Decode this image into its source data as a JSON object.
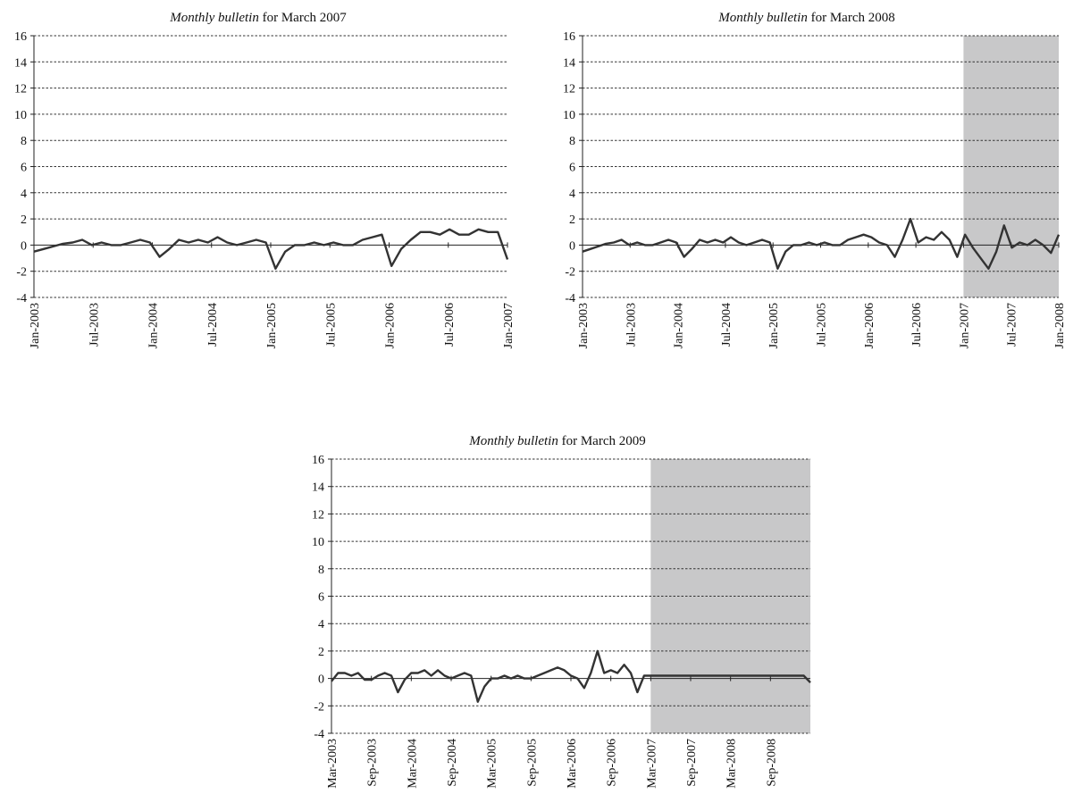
{
  "chart_data": [
    {
      "type": "line",
      "title_prefix": "Monthly bulletin",
      "title_suffix": " for March 2007",
      "ylim": [
        -4,
        16
      ],
      "yticks": [
        -4,
        -2,
        0,
        2,
        4,
        6,
        8,
        10,
        12,
        14,
        16
      ],
      "grid": true,
      "x_tick_labels": [
        "Jan-2003",
        "Jul-2003",
        "Jan-2004",
        "Jul-2004",
        "Jan-2005",
        "Jul-2005",
        "Jan-2006",
        "Jul-2006",
        "Jan-2007"
      ],
      "shaded": null,
      "series": [
        {
          "x_start": "Jan-2003",
          "values": [
            -0.5,
            -0.3,
            -0.1,
            0.1,
            0.2,
            0.4,
            0.0,
            0.2,
            0.0,
            0.0,
            0.2,
            0.4,
            0.2,
            -0.9,
            -0.3,
            0.4,
            0.2,
            0.4,
            0.2,
            0.6,
            0.2,
            0.0,
            0.2,
            0.4,
            0.2,
            -1.8,
            -0.5,
            0.0,
            0.0,
            0.2,
            0.0,
            0.2,
            0.0,
            0.0,
            0.4,
            0.6,
            0.8,
            -1.6,
            -0.3,
            0.4,
            1.0,
            1.0,
            0.8,
            1.2,
            0.8,
            0.8,
            1.2,
            1.0,
            1.0,
            -1.1
          ]
        }
      ]
    },
    {
      "type": "line",
      "title_prefix": "Monthly bulletin",
      "title_suffix": " for March 2008",
      "ylim": [
        -4,
        16
      ],
      "yticks": [
        -4,
        -2,
        0,
        2,
        4,
        6,
        8,
        10,
        12,
        14,
        16
      ],
      "grid": true,
      "x_tick_labels": [
        "Jan-2003",
        "Jul-2003",
        "Jan-2004",
        "Jul-2004",
        "Jan-2005",
        "Jul-2005",
        "Jan-2006",
        "Jul-2006",
        "Jan-2007",
        "Jul-2007",
        "Jan-2008"
      ],
      "shaded": [
        "Jan-2007",
        "Jan-2008"
      ],
      "series": [
        {
          "x_start": "Jan-2003",
          "values": [
            -0.5,
            -0.3,
            -0.1,
            0.1,
            0.2,
            0.4,
            0.0,
            0.2,
            0.0,
            0.0,
            0.2,
            0.4,
            0.2,
            -0.9,
            -0.3,
            0.4,
            0.2,
            0.4,
            0.2,
            0.6,
            0.2,
            0.0,
            0.2,
            0.4,
            0.2,
            -1.8,
            -0.5,
            0.0,
            0.0,
            0.2,
            0.0,
            0.2,
            0.0,
            0.0,
            0.4,
            0.6,
            0.8,
            0.6,
            0.2,
            0.0,
            -0.9,
            0.4,
            2.0,
            0.2,
            0.6,
            0.4,
            1.0,
            0.4,
            -0.9,
            0.8,
            -0.2,
            -1.0,
            -1.8,
            -0.5,
            1.5,
            -0.2,
            0.2,
            0.0,
            0.4,
            0.0,
            -0.6,
            0.8
          ]
        }
      ]
    },
    {
      "type": "line",
      "title_prefix": "Monthly bulletin",
      "title_suffix": " for March 2009",
      "ylim": [
        -4,
        16
      ],
      "yticks": [
        -4,
        -2,
        0,
        2,
        4,
        6,
        8,
        10,
        12,
        14,
        16
      ],
      "grid": true,
      "x_tick_labels": [
        "Mar-2003",
        "Sep-2003",
        "Mar-2004",
        "Sep-2004",
        "Mar-2005",
        "Sep-2005",
        "Mar-2006",
        "Sep-2006",
        "Mar-2007",
        "Sep-2007",
        "Mar-2008",
        "Sep-2008"
      ],
      "shaded": [
        "Mar-2007",
        "Mar-2009"
      ],
      "series": [
        {
          "x_start": "Mar-2003",
          "values": [
            -0.2,
            0.4,
            0.4,
            0.2,
            0.4,
            -0.1,
            -0.1,
            0.2,
            0.4,
            0.2,
            -1.0,
            -0.1,
            0.4,
            0.4,
            0.6,
            0.2,
            0.6,
            0.2,
            0.0,
            0.2,
            0.4,
            0.2,
            -1.7,
            -0.6,
            0.0,
            0.0,
            0.2,
            0.0,
            0.2,
            0.0,
            0.0,
            0.2,
            0.4,
            0.6,
            0.8,
            0.6,
            0.2,
            0.0,
            -0.7,
            0.4,
            2.0,
            0.4,
            0.6,
            0.4,
            1.0,
            0.4,
            -1.0,
            0.2,
            0.2,
            0.2,
            0.2,
            0.2,
            0.2,
            0.2,
            0.2,
            0.2,
            0.2,
            0.2,
            0.2,
            0.2,
            0.2,
            0.2,
            0.2,
            0.2,
            0.2,
            0.2,
            0.2,
            0.2,
            0.2,
            0.2,
            0.2,
            0.2,
            -0.3
          ]
        }
      ]
    }
  ]
}
